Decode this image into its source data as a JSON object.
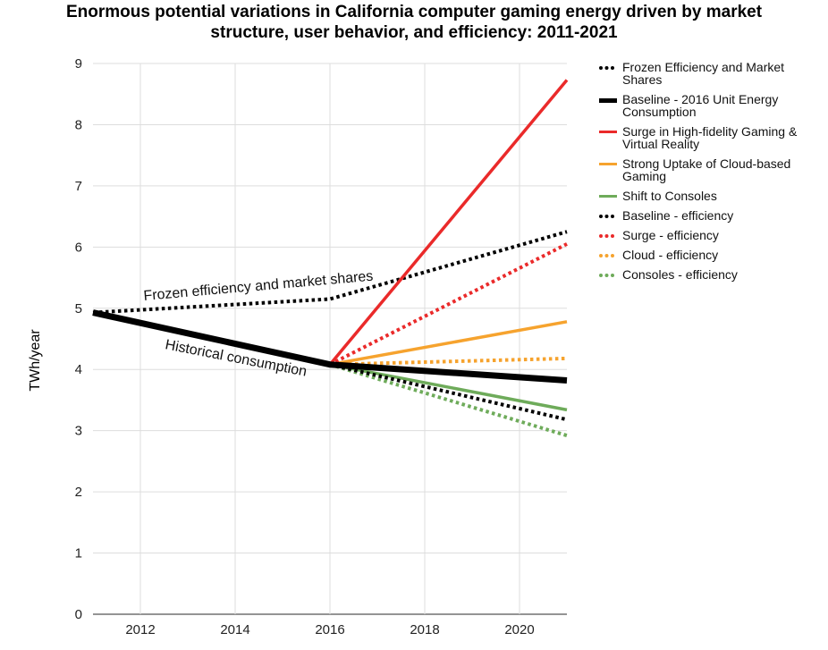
{
  "chart_data": {
    "type": "line",
    "title_line1": "Enormous potential variations in California computer gaming energy driven by market",
    "title_line2": "structure, user behavior, and efficiency: 2011-2021",
    "ylabel": "TWh/year",
    "xlabel": "",
    "xlim": [
      2011,
      2021
    ],
    "ylim": [
      0,
      9
    ],
    "x_ticks": [
      "2012",
      "2014",
      "2016",
      "2018",
      "2020"
    ],
    "y_ticks": [
      "0",
      "1",
      "2",
      "3",
      "4",
      "5",
      "6",
      "7",
      "8",
      "9"
    ],
    "grid": true,
    "legend_position": "right",
    "annotations": [
      {
        "text": "Frozen efficiency and market shares"
      },
      {
        "text": "Historical consumption"
      }
    ],
    "series": [
      {
        "name": "Frozen Efficiency and Market Shares",
        "color": "#000000",
        "style": "dotted",
        "x": [
          2011,
          2016,
          2021
        ],
        "y": [
          4.93,
          5.15,
          6.25
        ]
      },
      {
        "name": "Baseline - 2016 Unit Energy Consumption",
        "color": "#000000",
        "style": "thick",
        "x": [
          2011,
          2016,
          2021
        ],
        "y": [
          4.93,
          4.08,
          3.82
        ]
      },
      {
        "name": "Surge in High-fidelity Gaming & Virtual Reality",
        "color": "#ea2a2a",
        "style": "solid",
        "x": [
          2016,
          2021
        ],
        "y": [
          4.08,
          8.73
        ]
      },
      {
        "name": "Strong Uptake of Cloud-based Gaming",
        "color": "#f6a32e",
        "style": "solid",
        "x": [
          2016,
          2021
        ],
        "y": [
          4.08,
          4.78
        ]
      },
      {
        "name": "Shift to Consoles",
        "color": "#6eab5a",
        "style": "solid",
        "x": [
          2016,
          2021
        ],
        "y": [
          4.08,
          3.34
        ]
      },
      {
        "name": "Baseline - efficiency",
        "color": "#000000",
        "style": "dotted",
        "x": [
          2016,
          2021
        ],
        "y": [
          4.08,
          3.18
        ]
      },
      {
        "name": "Surge - efficiency",
        "color": "#ea2a2a",
        "style": "dotted",
        "x": [
          2016,
          2021
        ],
        "y": [
          4.08,
          6.05
        ]
      },
      {
        "name": "Cloud - efficiency",
        "color": "#f6a32e",
        "style": "dotted",
        "x": [
          2016,
          2021
        ],
        "y": [
          4.08,
          4.18
        ]
      },
      {
        "name": "Consoles - efficiency",
        "color": "#6eab5a",
        "style": "dotted",
        "x": [
          2016,
          2021
        ],
        "y": [
          4.08,
          2.92
        ]
      }
    ]
  }
}
